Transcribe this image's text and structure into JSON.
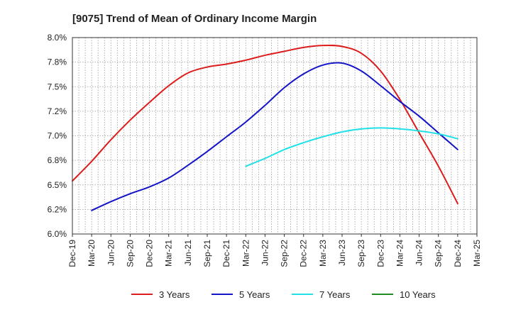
{
  "chart_data": {
    "type": "line",
    "title": "[9075]  Trend of Mean of Ordinary Income Margin",
    "xlabel": "",
    "ylabel": "",
    "x_ticks": [
      "Dec-19",
      "Mar-20",
      "Jun-20",
      "Sep-20",
      "Dec-20",
      "Mar-21",
      "Jun-21",
      "Sep-21",
      "Dec-21",
      "Mar-22",
      "Jun-22",
      "Sep-22",
      "Dec-22",
      "Mar-23",
      "Jun-23",
      "Sep-23",
      "Dec-23",
      "Mar-24",
      "Jun-24",
      "Sep-24",
      "Dec-24",
      "Mar-25"
    ],
    "y_ticks": [
      "6.0%",
      "6.2%",
      "6.5%",
      "6.8%",
      "7.0%",
      "7.2%",
      "7.5%",
      "7.8%",
      "8.0%"
    ],
    "ylim": [
      6.0,
      8.0
    ],
    "grid": true,
    "legend_position": "bottom",
    "series": [
      {
        "name": "3 Years",
        "color": "#dd1c1c",
        "x": [
          "Dec-19",
          "Mar-20",
          "Jun-20",
          "Sep-20",
          "Dec-20",
          "Mar-21",
          "Jun-21",
          "Sep-21",
          "Dec-21",
          "Mar-22",
          "Jun-22",
          "Sep-22",
          "Dec-22",
          "Mar-23",
          "Jun-23",
          "Sep-23",
          "Dec-23",
          "Mar-24",
          "Jun-24",
          "Sep-24",
          "Dec-24"
        ],
        "values": [
          6.54,
          6.74,
          6.96,
          7.16,
          7.34,
          7.51,
          7.64,
          7.7,
          7.73,
          7.77,
          7.82,
          7.86,
          7.9,
          7.92,
          7.91,
          7.84,
          7.66,
          7.37,
          7.03,
          6.69,
          6.31
        ]
      },
      {
        "name": "5 Years",
        "color": "#1515c8",
        "x": [
          "Mar-20",
          "Jun-20",
          "Sep-20",
          "Dec-20",
          "Mar-21",
          "Jun-21",
          "Sep-21",
          "Dec-21",
          "Mar-22",
          "Jun-22",
          "Sep-22",
          "Dec-22",
          "Mar-23",
          "Jun-23",
          "Sep-23",
          "Dec-23",
          "Mar-24",
          "Jun-24",
          "Sep-24",
          "Dec-24"
        ],
        "values": [
          6.24,
          6.33,
          6.41,
          6.48,
          6.57,
          6.7,
          6.84,
          6.99,
          7.14,
          7.31,
          7.49,
          7.63,
          7.72,
          7.74,
          7.66,
          7.51,
          7.35,
          7.2,
          7.03,
          6.86
        ]
      },
      {
        "name": "7 Years",
        "color": "#22e0e8",
        "x": [
          "Mar-22",
          "Jun-22",
          "Sep-22",
          "Dec-22",
          "Mar-23",
          "Jun-23",
          "Sep-23",
          "Dec-23",
          "Mar-24",
          "Jun-24",
          "Sep-24",
          "Dec-24"
        ],
        "values": [
          6.69,
          6.77,
          6.86,
          6.93,
          6.99,
          7.04,
          7.07,
          7.08,
          7.07,
          7.05,
          7.02,
          6.97
        ]
      },
      {
        "name": "10 Years",
        "color": "#1f8c1f",
        "x": [],
        "values": []
      }
    ]
  }
}
